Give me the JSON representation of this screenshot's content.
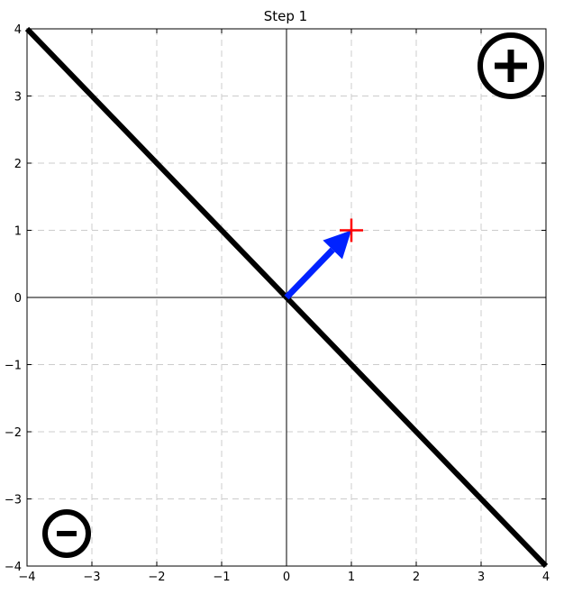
{
  "chart_data": {
    "type": "line",
    "title": "Step 1",
    "xlabel": "",
    "ylabel": "",
    "xlim": [
      -4,
      4
    ],
    "ylim": [
      -4,
      4
    ],
    "x_ticks": [
      -4,
      -3,
      -2,
      -1,
      0,
      1,
      2,
      3,
      4
    ],
    "y_ticks": [
      -4,
      -3,
      -2,
      -1,
      0,
      1,
      2,
      3,
      4
    ],
    "x_tick_labels": [
      "−4",
      "−3",
      "−2",
      "−1",
      "0",
      "1",
      "2",
      "3",
      "4"
    ],
    "y_tick_labels": [
      "−4",
      "−3",
      "−2",
      "−1",
      "0",
      "1",
      "2",
      "3",
      "4"
    ],
    "grid": true,
    "grid_style": "dashed",
    "decision_line": {
      "x": [
        -4,
        4
      ],
      "y": [
        4,
        -4
      ],
      "color": "#000000"
    },
    "weight_vector": {
      "from": [
        0,
        0
      ],
      "to": [
        1,
        1
      ],
      "color": "#0022ff"
    },
    "point": {
      "x": 1,
      "y": 1,
      "marker": "plus",
      "color": "#ff0000"
    },
    "region_labels": {
      "positive": {
        "symbol": "plus-circle-icon",
        "placement": "top-right"
      },
      "negative": {
        "symbol": "minus-circle-icon",
        "placement": "bottom-left"
      }
    },
    "colors": {
      "axes": "#000000",
      "grid": "#cccccc"
    }
  }
}
